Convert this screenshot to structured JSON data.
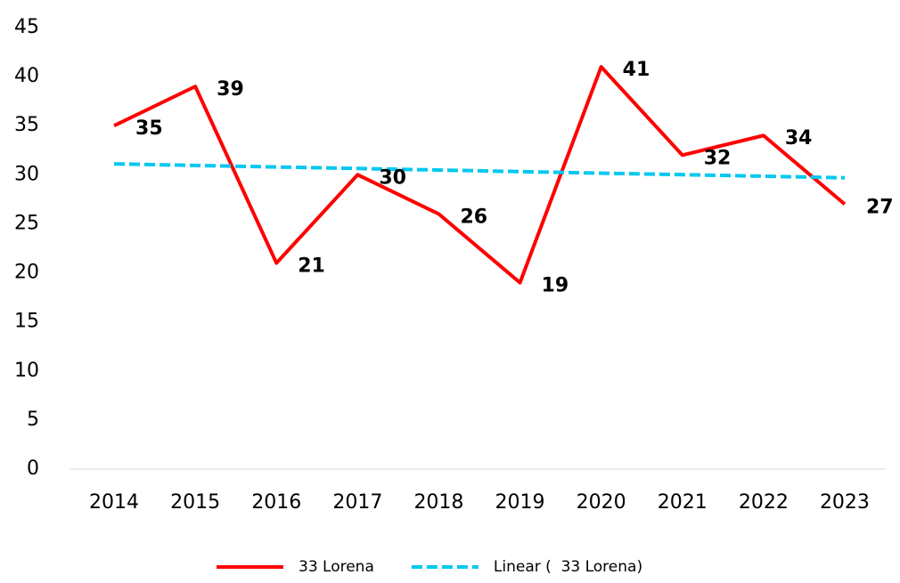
{
  "chart_data": {
    "type": "line",
    "categories": [
      "2014",
      "2015",
      "2016",
      "2017",
      "2018",
      "2019",
      "2020",
      "2021",
      "2022",
      "2023"
    ],
    "series": [
      {
        "name": "33 Lorena",
        "color": "#ff0000",
        "values": [
          35,
          39,
          21,
          30,
          26,
          19,
          41,
          32,
          34,
          27
        ]
      },
      {
        "name": "Linear (  33 Lorena)",
        "color": "#00c8f0",
        "dashed": true,
        "values": [
          31.11,
          30.95,
          30.79,
          30.64,
          30.48,
          30.32,
          30.16,
          30.01,
          29.85,
          29.69
        ]
      }
    ],
    "data_labels_series": 0,
    "ylim": [
      0,
      45
    ],
    "yticks": [
      0,
      5,
      10,
      15,
      20,
      25,
      30,
      35,
      40,
      45
    ],
    "grid": false
  }
}
